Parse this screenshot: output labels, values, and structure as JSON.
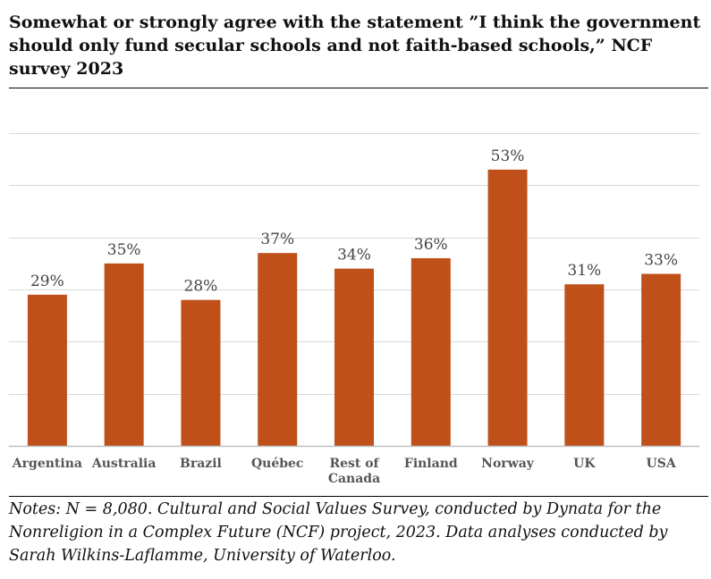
{
  "title": "Somewhat or strongly agree with the statement ”I think the government should only fund secular schools and not faith-based schools,” NCF survey 2023",
  "notes": "Notes: N = 8,080. Cultural and Social Values Survey, conducted by Dynata for the Nonreligion in a Complex Future (NCF) project, 2023. Data analyses conducted by Sarah Wilkins-Laflamme, University of Waterloo.",
  "colors": {
    "bar": "#C0501A",
    "grid": "#D9D9D9",
    "axis": "#BFBFBF"
  },
  "chart_data": {
    "type": "bar",
    "title": "Somewhat or strongly agree with the statement ”I think the government should only fund secular schools and not faith-based schools,” NCF survey 2023",
    "xlabel": "",
    "ylabel": "",
    "ylim": [
      0,
      60
    ],
    "gridlines": [
      0,
      10,
      20,
      30,
      40,
      50,
      60
    ],
    "categories": [
      "Argentina",
      "Australia",
      "Brazil",
      "Québec",
      "Rest of Canada",
      "Finland",
      "Norway",
      "UK",
      "USA"
    ],
    "category_lines": [
      [
        "Argentina"
      ],
      [
        "Australia"
      ],
      [
        "Brazil"
      ],
      [
        "Québec"
      ],
      [
        "Rest of",
        "Canada"
      ],
      [
        "Finland"
      ],
      [
        "Norway"
      ],
      [
        "UK"
      ],
      [
        "USA"
      ]
    ],
    "values": [
      29,
      35,
      28,
      37,
      34,
      36,
      53,
      31,
      33
    ],
    "labels": [
      "29%",
      "35%",
      "28%",
      "37%",
      "34%",
      "36%",
      "53%",
      "31%",
      "33%"
    ]
  }
}
